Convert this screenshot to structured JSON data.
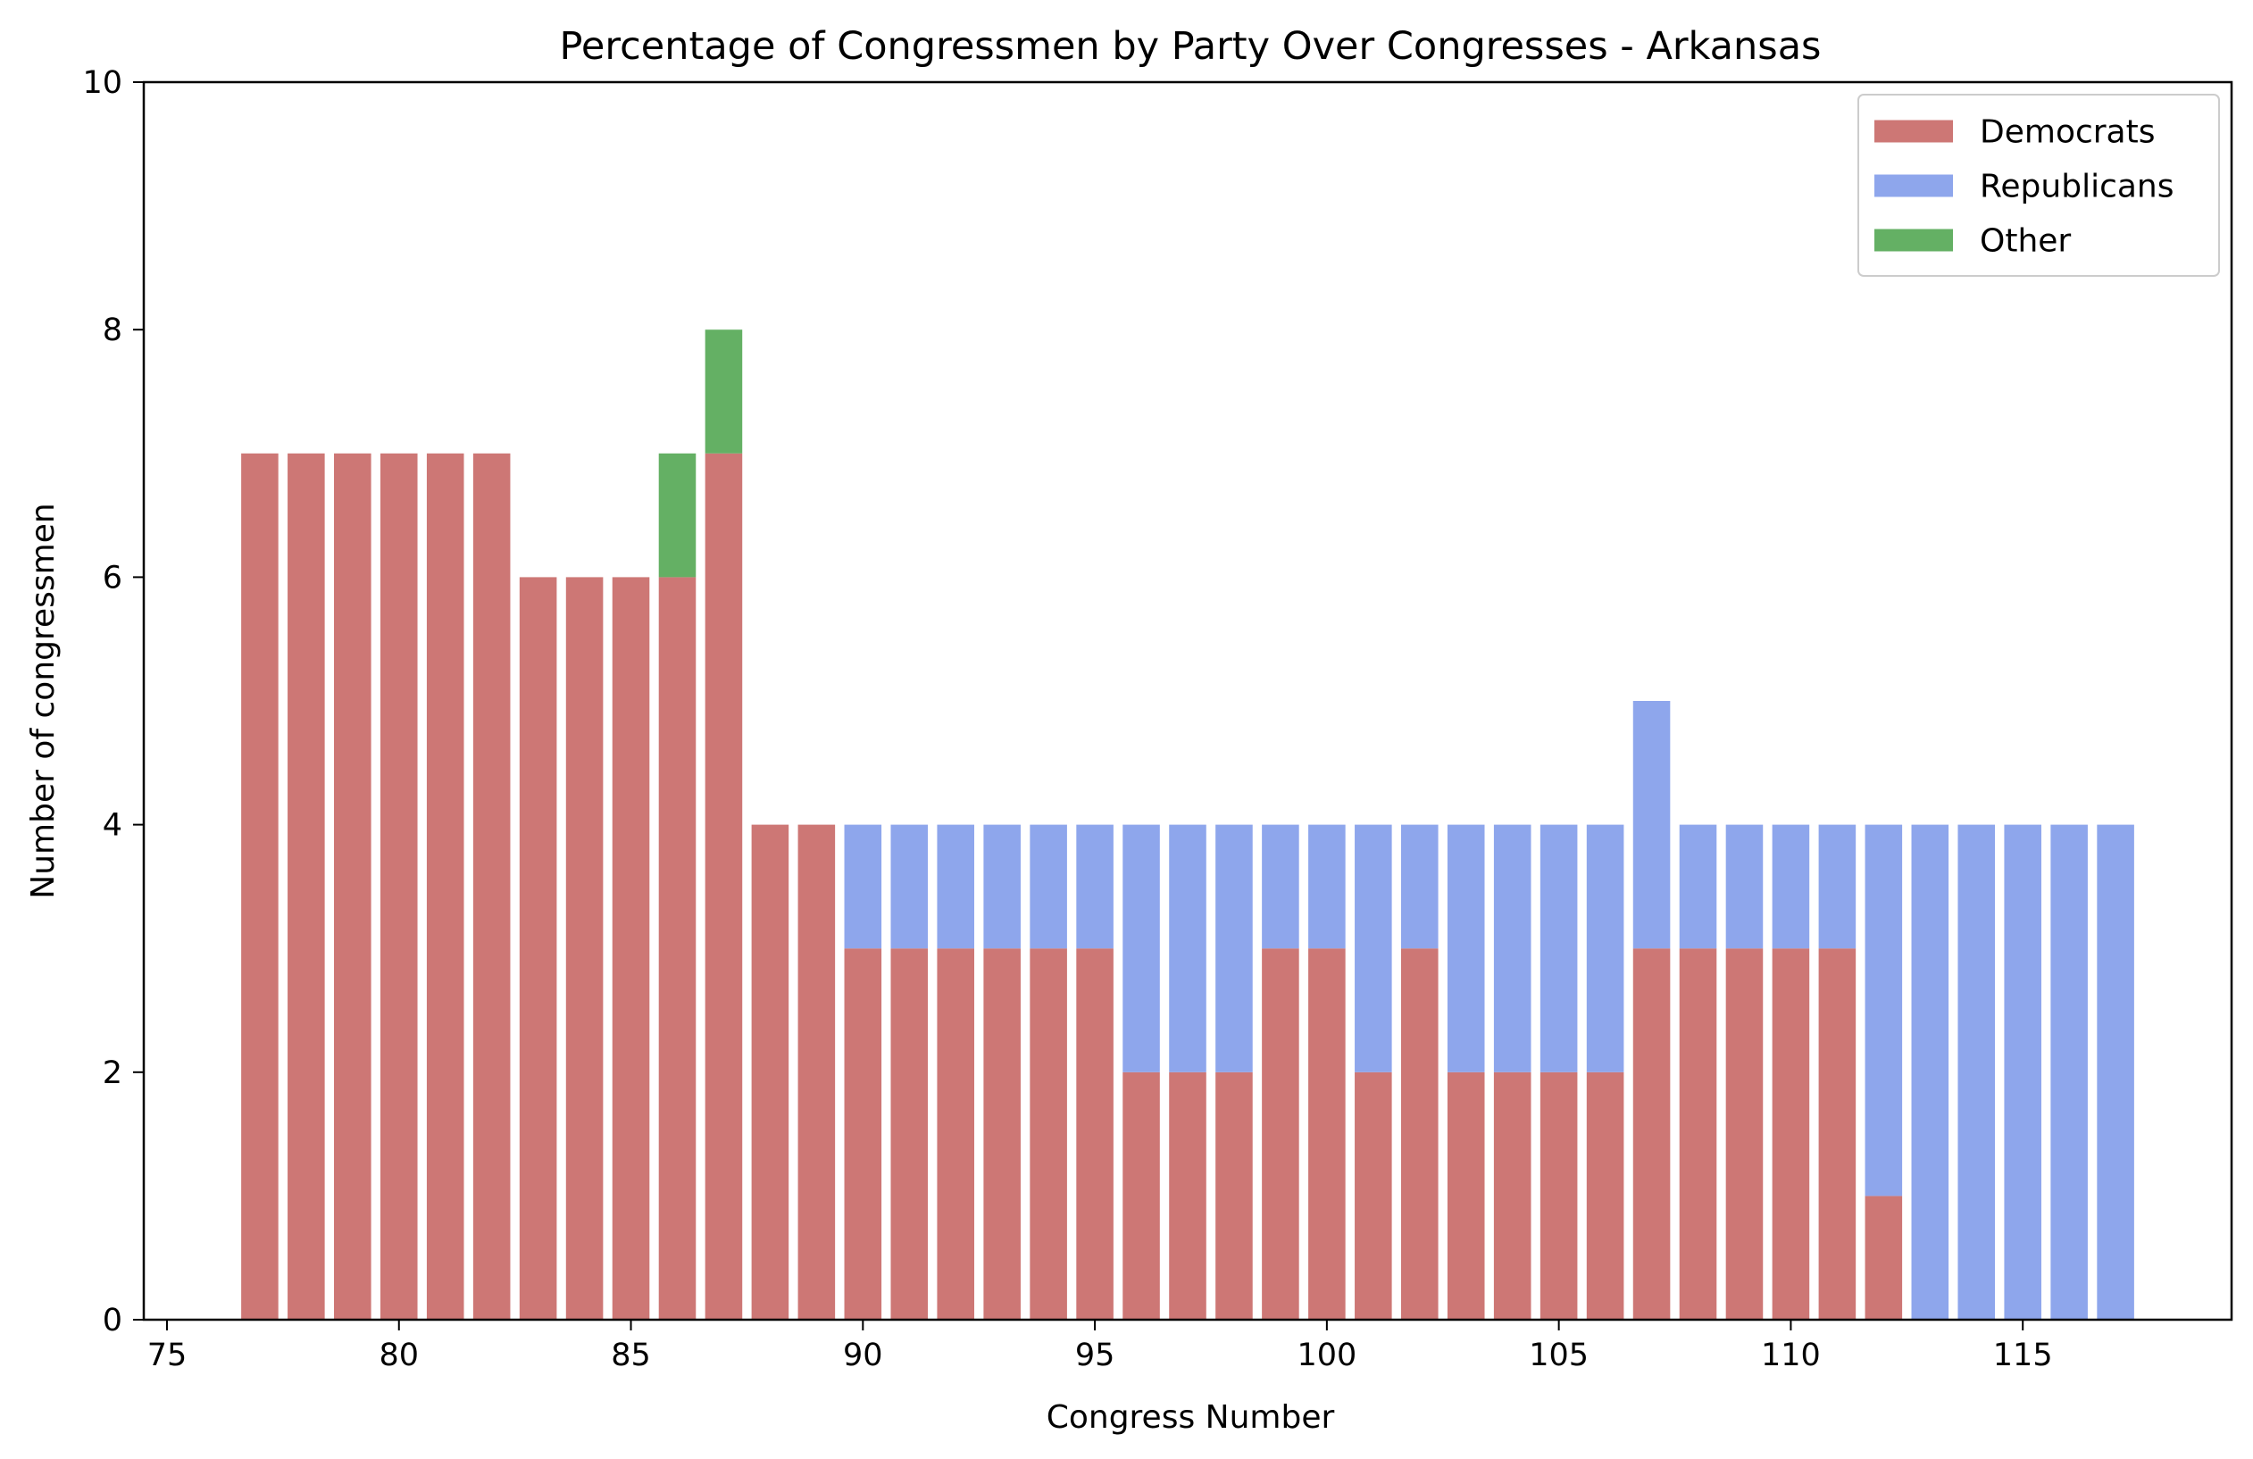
{
  "chart_data": {
    "type": "bar",
    "stacked": true,
    "title": "Percentage of Congressmen by Party Over Congresses - Arkansas",
    "xlabel": "Congress Number",
    "ylabel": "Number of congressmen",
    "xlim": [
      74.5,
      119.5
    ],
    "ylim": [
      0,
      10
    ],
    "xticks": [
      75,
      80,
      85,
      90,
      95,
      100,
      105,
      110,
      115
    ],
    "yticks": [
      0,
      2,
      4,
      6,
      8,
      10
    ],
    "grid": false,
    "legend_position": "top-right",
    "x": [
      77,
      78,
      79,
      80,
      81,
      82,
      83,
      84,
      85,
      86,
      87,
      88,
      89,
      90,
      91,
      92,
      93,
      94,
      95,
      96,
      97,
      98,
      99,
      100,
      101,
      102,
      103,
      104,
      105,
      106,
      107,
      108,
      109,
      110,
      111,
      112,
      113,
      114,
      115,
      116,
      117
    ],
    "series": [
      {
        "name": "Democrats",
        "color": "#cd7775",
        "values": [
          7,
          7,
          7,
          7,
          7,
          7,
          6,
          6,
          6,
          6,
          7,
          4,
          4,
          3,
          3,
          3,
          3,
          3,
          3,
          2,
          2,
          2,
          3,
          3,
          2,
          3,
          2,
          2,
          2,
          2,
          3,
          3,
          3,
          3,
          3,
          1,
          0,
          0,
          0,
          0,
          0
        ]
      },
      {
        "name": "Republicans",
        "color": "#8ea6ec",
        "values": [
          0,
          0,
          0,
          0,
          0,
          0,
          0,
          0,
          0,
          0,
          0,
          0,
          0,
          1,
          1,
          1,
          1,
          1,
          1,
          2,
          2,
          2,
          1,
          1,
          2,
          1,
          2,
          2,
          2,
          2,
          2,
          1,
          1,
          1,
          1,
          3,
          4,
          4,
          4,
          4,
          4
        ]
      },
      {
        "name": "Other",
        "color": "#64b064",
        "values": [
          0,
          0,
          0,
          0,
          0,
          0,
          0,
          0,
          0,
          1,
          1,
          0,
          0,
          0,
          0,
          0,
          0,
          0,
          0,
          0,
          0,
          0,
          0,
          0,
          0,
          0,
          0,
          0,
          0,
          0,
          0,
          0,
          0,
          0,
          0,
          0,
          0,
          0,
          0,
          0,
          0
        ]
      }
    ]
  }
}
